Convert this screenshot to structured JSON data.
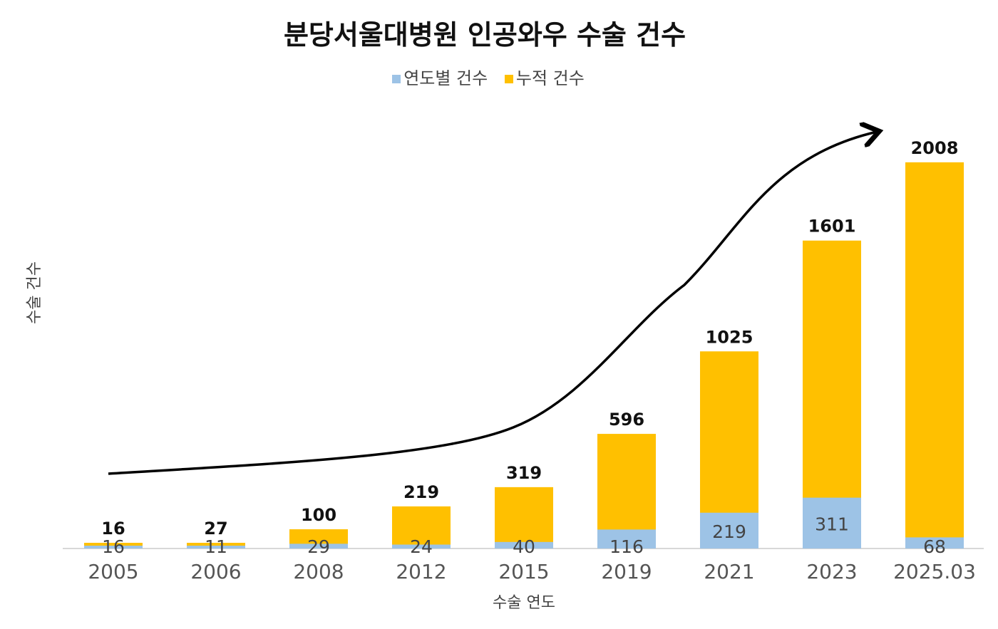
{
  "chart_data": {
    "type": "bar",
    "title": "분당서울대병원 인공와우 수술 건수",
    "xlabel": "수술 연도",
    "ylabel": "수술 건수",
    "categories": [
      "2005",
      "2006",
      "2008",
      "2012",
      "2015",
      "2019",
      "2021",
      "2023",
      "2025.03"
    ],
    "series": [
      {
        "name": "연도별 건수",
        "color": "#9DC3E6",
        "values": [
          16,
          11,
          29,
          24,
          40,
          116,
          219,
          311,
          68
        ]
      },
      {
        "name": "누적 건수",
        "color": "#FFC000",
        "values": [
          16,
          27,
          100,
          219,
          319,
          596,
          1025,
          1601,
          2008
        ]
      }
    ],
    "legend_position": "top",
    "grid": false,
    "annotation": "upward trend arrow"
  }
}
